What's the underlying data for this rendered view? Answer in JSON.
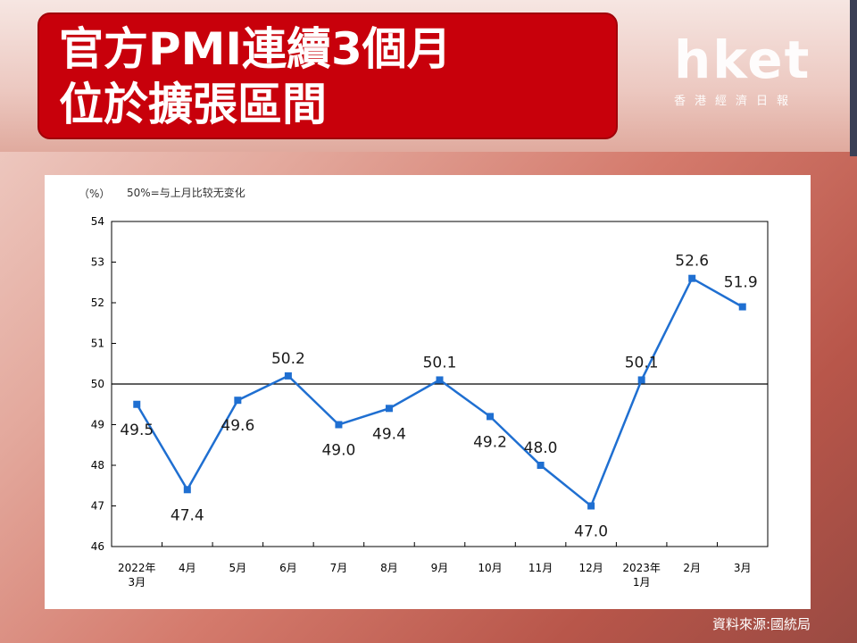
{
  "header": {
    "title_line1": "官方PMI連續3個月",
    "title_line2": "位於擴張區間"
  },
  "logo": {
    "name": "hket",
    "subtitle": "香港經濟日報"
  },
  "source": "資料來源:國統局",
  "colors": {
    "title_bg": "#c8000b",
    "series": "#1f6fd1",
    "reference_line": "#000000"
  },
  "chart_data": {
    "type": "line",
    "unit_label": "（%）",
    "note": "50%=与上月比较无变化",
    "categories": [
      "2022年\n3月",
      "4月",
      "5月",
      "6月",
      "7月",
      "8月",
      "9月",
      "10月",
      "11月",
      "12月",
      "2023年\n1月",
      "2月",
      "3月"
    ],
    "values": [
      49.5,
      47.4,
      49.6,
      50.2,
      49.0,
      49.4,
      50.1,
      49.2,
      48.0,
      47.0,
      50.1,
      52.6,
      51.9
    ],
    "data_labels": [
      "49.5",
      "47.4",
      "49.6",
      "50.2",
      "49.0",
      "49.4",
      "50.1",
      "49.2",
      "48.0",
      "47.0",
      "50.1",
      "52.6",
      "51.9"
    ],
    "ylim": [
      46,
      54
    ],
    "yticks": [
      "54",
      "53",
      "52",
      "51",
      "50",
      "49",
      "48",
      "47",
      "46"
    ],
    "reference_value": 50,
    "grid": false
  }
}
